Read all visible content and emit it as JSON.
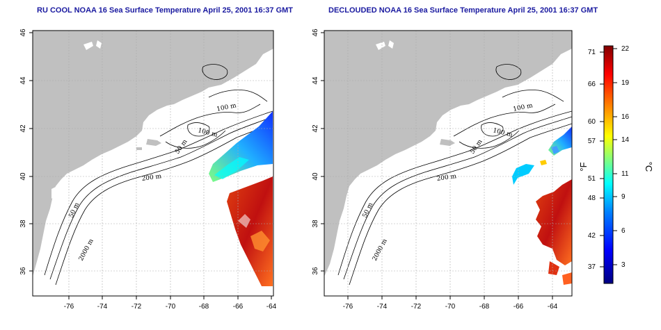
{
  "titles": {
    "left": "RU COOL NOAA 16 Sea Surface Temperature April 25, 2001 16:37 GMT",
    "right": "DECLOUDED NOAA 16 Sea Surface Temperature April 25, 2001 16:37 GMT"
  },
  "axes": {
    "x_ticks": [
      "-76",
      "-74",
      "-72",
      "-70",
      "-68",
      "-66",
      "-64"
    ],
    "y_ticks": [
      "36",
      "38",
      "40",
      "42",
      "44",
      "46"
    ]
  },
  "contour_labels": [
    "100 m",
    "100 m",
    "50 m",
    "200 m",
    "50 m",
    "2000 m"
  ],
  "colorbar": {
    "unit_f": "°F",
    "unit_c": "°C",
    "f_ticks": [
      "71",
      "66",
      "60",
      "57",
      "51",
      "48",
      "42",
      "37"
    ],
    "c_ticks": [
      "22",
      "19",
      "16",
      "14",
      "11",
      "9",
      "6",
      "3"
    ],
    "colors": [
      "#000080",
      "#0000ff",
      "#0080ff",
      "#00ffff",
      "#80ff80",
      "#ffff00",
      "#ff8000",
      "#ff0000",
      "#800000"
    ]
  },
  "colors": {
    "land": "#c0c0c0",
    "title": "#1a1aa0",
    "grid": "#aaaaaa"
  }
}
